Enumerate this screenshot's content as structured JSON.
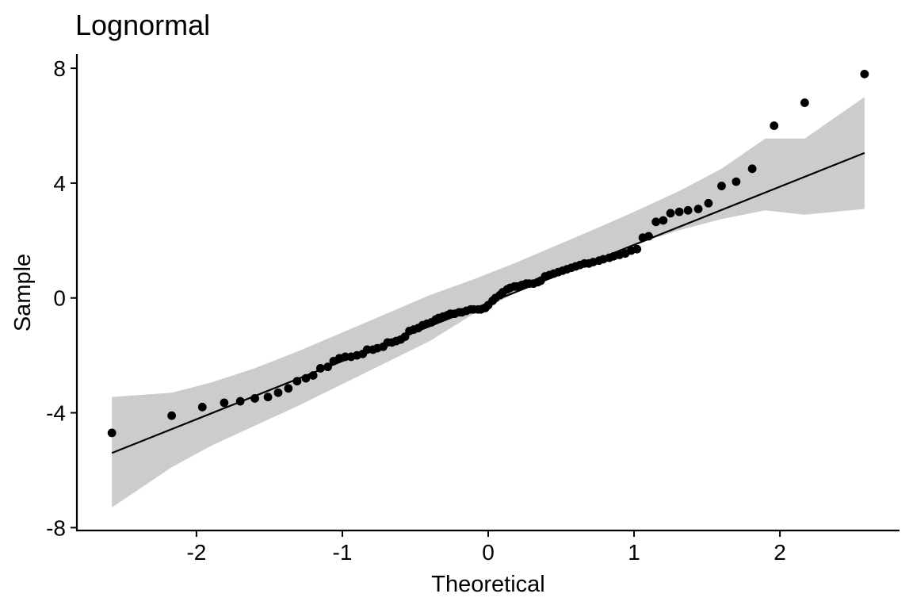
{
  "chart_data": {
    "type": "scatter",
    "title": "Lognormal",
    "xlabel": "Theoretical",
    "ylabel": "Sample",
    "xlim": [
      -2.82,
      2.82
    ],
    "ylim": [
      -8.1,
      8.5
    ],
    "x_ticks": [
      -2,
      -1,
      0,
      1,
      2
    ],
    "x_tick_labels": [
      "-2",
      "-1",
      "0",
      "1",
      "2"
    ],
    "y_ticks": [
      -8,
      -4,
      0,
      4,
      8
    ],
    "y_tick_labels": [
      "-8",
      "-4",
      "0",
      "4",
      "8"
    ],
    "grid": false,
    "legend": "none",
    "colors": {
      "points": "#000000",
      "line": "#000000",
      "band": "#cccccc"
    },
    "reference_line": {
      "x": [
        -2.58,
        2.58
      ],
      "y": [
        -5.4,
        5.05
      ]
    },
    "confidence_band": {
      "x": [
        -2.58,
        -2.17,
        -1.9,
        -1.6,
        -1.3,
        -1.0,
        -0.7,
        -0.4,
        -0.1,
        0.0,
        0.2,
        0.5,
        0.8,
        1.0,
        1.3,
        1.6,
        1.9,
        2.17,
        2.58
      ],
      "lower": [
        -7.3,
        -5.9,
        -5.15,
        -4.45,
        -3.75,
        -3.0,
        -2.25,
        -1.5,
        -0.55,
        -0.3,
        0.2,
        0.85,
        1.5,
        1.85,
        2.35,
        2.75,
        3.05,
        2.9,
        3.1
      ],
      "upper": [
        -3.45,
        -3.3,
        -2.95,
        -2.45,
        -1.85,
        -1.2,
        -0.55,
        0.1,
        0.65,
        0.85,
        1.25,
        1.9,
        2.55,
        3.0,
        3.7,
        4.5,
        5.55,
        5.55,
        7.0
      ]
    },
    "points": [
      {
        "x": -2.58,
        "y": -4.7
      },
      {
        "x": -2.17,
        "y": -4.1
      },
      {
        "x": -1.96,
        "y": -3.8
      },
      {
        "x": -1.81,
        "y": -3.65
      },
      {
        "x": -1.7,
        "y": -3.6
      },
      {
        "x": -1.6,
        "y": -3.5
      },
      {
        "x": -1.51,
        "y": -3.45
      },
      {
        "x": -1.44,
        "y": -3.3
      },
      {
        "x": -1.37,
        "y": -3.15
      },
      {
        "x": -1.31,
        "y": -2.9
      },
      {
        "x": -1.25,
        "y": -2.8
      },
      {
        "x": -1.2,
        "y": -2.7
      },
      {
        "x": -1.15,
        "y": -2.45
      },
      {
        "x": -1.1,
        "y": -2.4
      },
      {
        "x": -1.06,
        "y": -2.2
      },
      {
        "x": -1.02,
        "y": -2.1
      },
      {
        "x": -0.98,
        "y": -2.05
      },
      {
        "x": -0.94,
        "y": -2.05
      },
      {
        "x": -0.9,
        "y": -2.0
      },
      {
        "x": -0.86,
        "y": -1.95
      },
      {
        "x": -0.83,
        "y": -1.8
      },
      {
        "x": -0.79,
        "y": -1.8
      },
      {
        "x": -0.76,
        "y": -1.75
      },
      {
        "x": -0.72,
        "y": -1.7
      },
      {
        "x": -0.69,
        "y": -1.55
      },
      {
        "x": -0.66,
        "y": -1.55
      },
      {
        "x": -0.63,
        "y": -1.5
      },
      {
        "x": -0.6,
        "y": -1.45
      },
      {
        "x": -0.57,
        "y": -1.35
      },
      {
        "x": -0.54,
        "y": -1.15
      },
      {
        "x": -0.51,
        "y": -1.1
      },
      {
        "x": -0.48,
        "y": -1.05
      },
      {
        "x": -0.45,
        "y": -0.95
      },
      {
        "x": -0.42,
        "y": -0.9
      },
      {
        "x": -0.39,
        "y": -0.85
      },
      {
        "x": -0.36,
        "y": -0.75
      },
      {
        "x": -0.34,
        "y": -0.7
      },
      {
        "x": -0.31,
        "y": -0.65
      },
      {
        "x": -0.28,
        "y": -0.6
      },
      {
        "x": -0.26,
        "y": -0.55
      },
      {
        "x": -0.23,
        "y": -0.55
      },
      {
        "x": -0.2,
        "y": -0.5
      },
      {
        "x": -0.18,
        "y": -0.5
      },
      {
        "x": -0.15,
        "y": -0.45
      },
      {
        "x": -0.12,
        "y": -0.4
      },
      {
        "x": -0.1,
        "y": -0.4
      },
      {
        "x": -0.07,
        "y": -0.4
      },
      {
        "x": -0.05,
        "y": -0.4
      },
      {
        "x": -0.02,
        "y": -0.35
      },
      {
        "x": 0.0,
        "y": -0.25
      },
      {
        "x": 0.03,
        "y": -0.1
      },
      {
        "x": 0.05,
        "y": 0.0
      },
      {
        "x": 0.08,
        "y": 0.1
      },
      {
        "x": 0.1,
        "y": 0.2
      },
      {
        "x": 0.13,
        "y": 0.3
      },
      {
        "x": 0.15,
        "y": 0.35
      },
      {
        "x": 0.18,
        "y": 0.4
      },
      {
        "x": 0.2,
        "y": 0.4
      },
      {
        "x": 0.23,
        "y": 0.45
      },
      {
        "x": 0.26,
        "y": 0.5
      },
      {
        "x": 0.28,
        "y": 0.5
      },
      {
        "x": 0.31,
        "y": 0.5
      },
      {
        "x": 0.34,
        "y": 0.55
      },
      {
        "x": 0.36,
        "y": 0.6
      },
      {
        "x": 0.39,
        "y": 0.75
      },
      {
        "x": 0.42,
        "y": 0.8
      },
      {
        "x": 0.45,
        "y": 0.85
      },
      {
        "x": 0.48,
        "y": 0.9
      },
      {
        "x": 0.51,
        "y": 0.95
      },
      {
        "x": 0.54,
        "y": 1.0
      },
      {
        "x": 0.57,
        "y": 1.05
      },
      {
        "x": 0.6,
        "y": 1.1
      },
      {
        "x": 0.63,
        "y": 1.15
      },
      {
        "x": 0.66,
        "y": 1.2
      },
      {
        "x": 0.69,
        "y": 1.2
      },
      {
        "x": 0.72,
        "y": 1.25
      },
      {
        "x": 0.76,
        "y": 1.3
      },
      {
        "x": 0.79,
        "y": 1.35
      },
      {
        "x": 0.83,
        "y": 1.4
      },
      {
        "x": 0.86,
        "y": 1.45
      },
      {
        "x": 0.9,
        "y": 1.5
      },
      {
        "x": 0.94,
        "y": 1.55
      },
      {
        "x": 0.98,
        "y": 1.65
      },
      {
        "x": 1.02,
        "y": 1.7
      },
      {
        "x": 1.06,
        "y": 2.1
      },
      {
        "x": 1.1,
        "y": 2.15
      },
      {
        "x": 1.15,
        "y": 2.65
      },
      {
        "x": 1.2,
        "y": 2.7
      },
      {
        "x": 1.25,
        "y": 2.95
      },
      {
        "x": 1.31,
        "y": 3.0
      },
      {
        "x": 1.37,
        "y": 3.05
      },
      {
        "x": 1.44,
        "y": 3.1
      },
      {
        "x": 1.51,
        "y": 3.3
      },
      {
        "x": 1.6,
        "y": 3.9
      },
      {
        "x": 1.7,
        "y": 4.05
      },
      {
        "x": 1.81,
        "y": 4.5
      },
      {
        "x": 1.96,
        "y": 6.0
      },
      {
        "x": 2.17,
        "y": 6.8
      },
      {
        "x": 2.58,
        "y": 7.8
      }
    ]
  }
}
